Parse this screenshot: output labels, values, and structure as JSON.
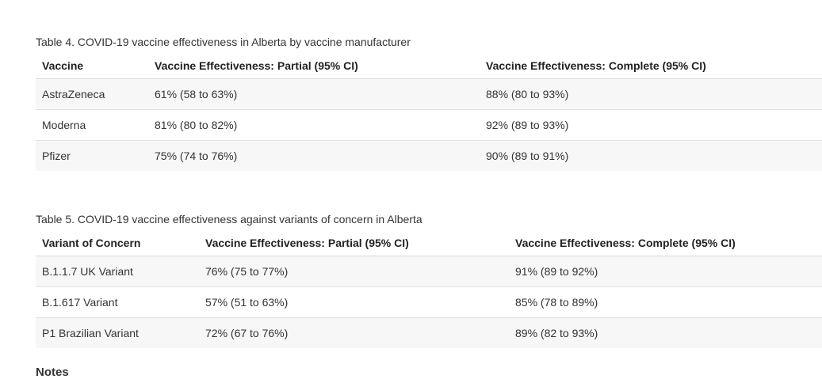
{
  "tables": [
    {
      "caption": "Table 4. COVID-19 vaccine effectiveness in Alberta by vaccine manufacturer",
      "headers": [
        "Vaccine",
        "Vaccine Effectiveness: Partial (95% CI)",
        "Vaccine Effectiveness: Complete (95% CI)"
      ],
      "rows": [
        [
          "AstraZeneca",
          "61% (58 to 63%)",
          "88% (80 to 93%)"
        ],
        [
          "Moderna",
          "81% (80 to 82%)",
          "92% (89 to 93%)"
        ],
        [
          "Pfizer",
          "75% (74 to 76%)",
          "90% (89 to 91%)"
        ]
      ]
    },
    {
      "caption": "Table 5. COVID-19 vaccine effectiveness against variants of concern in Alberta",
      "headers": [
        "Variant of Concern",
        "Vaccine Effectiveness: Partial (95% CI)",
        "Vaccine Effectiveness: Complete (95% CI)"
      ],
      "rows": [
        [
          "B.1.1.7 UK Variant",
          "76% (75 to 77%)",
          "91% (89 to 92%)"
        ],
        [
          "B.1.617 Variant",
          "57% (51 to 63%)",
          "85% (78 to 89%)"
        ],
        [
          "P1 Brazilian Variant",
          "72% (67 to 76%)",
          "89% (82 to 93%)"
        ]
      ]
    }
  ],
  "notes_heading": "Notes"
}
